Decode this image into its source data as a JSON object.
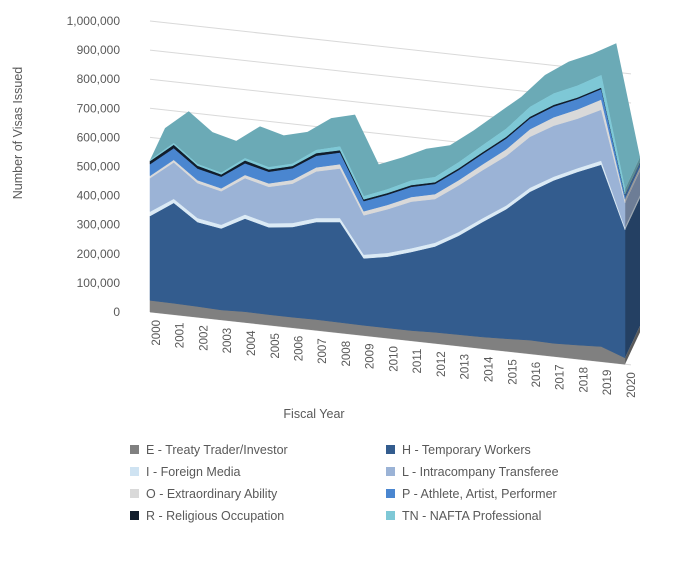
{
  "chart_data": {
    "type": "area",
    "stacked": true,
    "style": "3d",
    "xlabel": "Fiscal Year",
    "ylabel": "Number of Visas Issued",
    "ylim": [
      0,
      1000000
    ],
    "yticks": [
      "0",
      "100,000",
      "200,000",
      "300,000",
      "400,000",
      "500,000",
      "600,000",
      "700,000",
      "800,000",
      "900,000",
      "1,000,000"
    ],
    "ytick_values": [
      0,
      100000,
      200000,
      300000,
      400000,
      500000,
      600000,
      700000,
      800000,
      900000,
      1000000
    ],
    "grid": true,
    "legend_position": "bottom",
    "x": [
      "2000",
      "2001",
      "2002",
      "2003",
      "2004",
      "2005",
      "2006",
      "2007",
      "2008",
      "2009",
      "2010",
      "2011",
      "2012",
      "2013",
      "2014",
      "2015",
      "2016",
      "2017",
      "2018",
      "2019",
      "2020"
    ],
    "series": [
      {
        "name": "E - Treaty Trader/Investor",
        "color": "#808080",
        "values": [
          40000,
          39000,
          37000,
          34000,
          37000,
          36000,
          36000,
          37000,
          36000,
          35000,
          35000,
          35000,
          38000,
          39000,
          40000,
          43000,
          47000,
          45000,
          48000,
          52000,
          22000
        ]
      },
      {
        "name": "H - Temporary Workers",
        "color": "#335c8e",
        "values": [
          290000,
          345000,
          290000,
          280000,
          320000,
          300000,
          310000,
          335000,
          345000,
          230000,
          245000,
          270000,
          295000,
          340000,
          395000,
          445000,
          510000,
          560000,
          595000,
          625000,
          440000
        ]
      },
      {
        "name": "I - Foreign Media",
        "color": "#dbeaf5",
        "values": [
          15000,
          14000,
          14000,
          13000,
          14000,
          14000,
          14000,
          14000,
          14000,
          13000,
          13000,
          13000,
          13000,
          13000,
          13000,
          13000,
          14000,
          13000,
          13000,
          14000,
          8000
        ]
      },
      {
        "name": "L - Intracompany Transferee",
        "color": "#9bb3d6",
        "values": [
          115000,
          125000,
          120000,
          115000,
          125000,
          125000,
          135000,
          160000,
          170000,
          135000,
          150000,
          160000,
          150000,
          160000,
          165000,
          170000,
          175000,
          175000,
          170000,
          175000,
          85000
        ]
      },
      {
        "name": "O - Extraordinary Ability",
        "color": "#d9d9d9",
        "values": [
          8000,
          9000,
          10000,
          10000,
          11000,
          12000,
          13000,
          14000,
          15000,
          14000,
          15000,
          16000,
          17000,
          18000,
          20000,
          23000,
          26000,
          29000,
          32000,
          35000,
          12000
        ]
      },
      {
        "name": "P - Athlete, Artist, Performer",
        "color": "#4a86d0",
        "values": [
          40000,
          40000,
          40000,
          40000,
          40000,
          40000,
          40000,
          40000,
          40000,
          35000,
          35000,
          35000,
          35000,
          35000,
          36000,
          37000,
          37000,
          37000,
          36000,
          36000,
          14000
        ]
      },
      {
        "name": "R - Religious Occupation",
        "color": "#111d2c",
        "values": [
          11000,
          12000,
          10000,
          8000,
          10000,
          8000,
          8000,
          9000,
          8000,
          6000,
          6000,
          6000,
          6000,
          6000,
          6000,
          6000,
          6000,
          6000,
          5000,
          5000,
          3000
        ]
      },
      {
        "name": "TN - NAFTA Professional",
        "color": "#7ec8d6",
        "values": [
          3000,
          5000,
          5000,
          5000,
          7000,
          7000,
          7000,
          10000,
          12000,
          10000,
          12000,
          15000,
          17000,
          20000,
          23000,
          27000,
          33000,
          38000,
          40000,
          42000,
          18000
        ]
      }
    ]
  }
}
